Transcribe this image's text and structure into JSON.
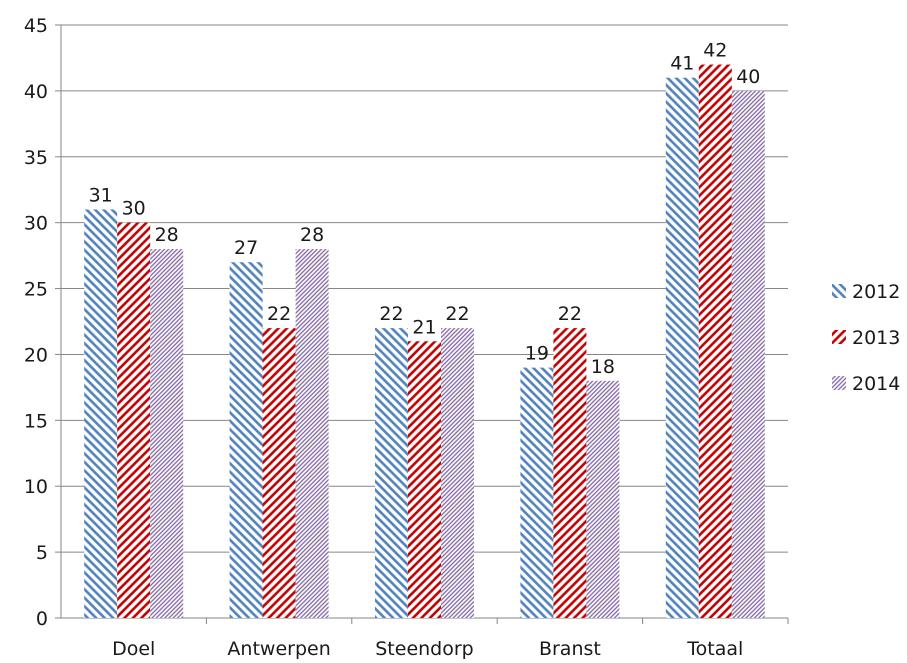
{
  "chart_data": {
    "type": "bar",
    "title": "",
    "xlabel": "",
    "ylabel": "",
    "ylim": [
      0,
      45
    ],
    "yticks": [
      0,
      5,
      10,
      15,
      20,
      25,
      30,
      35,
      40,
      45
    ],
    "grid": true,
    "legend_position": "right",
    "categories": [
      "Doel",
      "Antwerpen",
      "Steendorp",
      "Branst",
      "Totaal"
    ],
    "series": [
      {
        "name": "2012",
        "values": [
          31,
          27,
          22,
          19,
          41
        ],
        "color": "#4f81bd",
        "pattern": "wide-downward-diagonal"
      },
      {
        "name": "2013",
        "values": [
          30,
          22,
          21,
          22,
          42
        ],
        "color": "#c00000",
        "pattern": "wide-upward-diagonal"
      },
      {
        "name": "2014",
        "values": [
          28,
          28,
          22,
          18,
          40
        ],
        "color": "#8064a2",
        "pattern": "dark-upward-diagonal"
      }
    ]
  }
}
